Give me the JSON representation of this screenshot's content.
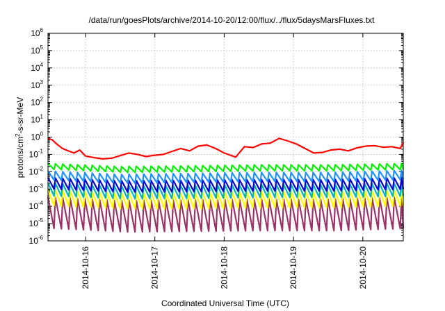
{
  "chart_data": {
    "type": "line",
    "title": "/data/run/goesPlots/archive/2014-10-20/12:00/flux/../flux/5daysMarsFluxes.txt",
    "xlabel": "Coordinated Universal Time (UTC)",
    "ylabel": {
      "prefix": "protons/cm",
      "exponent": "2",
      "suffix": "-s-sr-MeV"
    },
    "yscale": "log",
    "ylim": [
      1e-06,
      1000000.0
    ],
    "xlim": [
      "2014-10-15T11:00",
      "2014-10-20T14:00"
    ],
    "y_ticks": [
      {
        "value": 1e-06,
        "base": "10",
        "exp": "-6"
      },
      {
        "value": 1e-05,
        "base": "10",
        "exp": "-5"
      },
      {
        "value": 0.0001,
        "base": "10",
        "exp": "-4"
      },
      {
        "value": 0.001,
        "base": "10",
        "exp": "-3"
      },
      {
        "value": 0.01,
        "base": "10",
        "exp": "-2"
      },
      {
        "value": 0.1,
        "base": "10",
        "exp": "-1"
      },
      {
        "value": 1,
        "base": "10",
        "exp": "0"
      },
      {
        "value": 10.0,
        "base": "10",
        "exp": "1"
      },
      {
        "value": 100.0,
        "base": "10",
        "exp": "2"
      },
      {
        "value": 1000.0,
        "base": "10",
        "exp": "3"
      },
      {
        "value": 10000.0,
        "base": "10",
        "exp": "4"
      },
      {
        "value": 100000.0,
        "base": "10",
        "exp": "5"
      },
      {
        "value": 1000000.0,
        "base": "10",
        "exp": "6"
      }
    ],
    "x_ticks": [
      {
        "value": "2014-10-16T00:00",
        "label": "2014-10-16"
      },
      {
        "value": "2014-10-17T00:00",
        "label": "2014-10-17"
      },
      {
        "value": "2014-10-18T00:00",
        "label": "2014-10-18"
      },
      {
        "value": "2014-10-19T00:00",
        "label": "2014-10-19"
      },
      {
        "value": "2014-10-20T00:00",
        "label": "2014-10-20"
      }
    ],
    "grid": true,
    "legend": "none",
    "series": [
      {
        "color": "#ff0000",
        "points": [
          [
            "2014-10-15T11:00",
            0.85
          ],
          [
            "2014-10-15T12:30",
            0.7
          ],
          [
            "2014-10-15T14:00",
            0.4
          ],
          [
            "2014-10-15T16:00",
            0.22
          ],
          [
            "2014-10-15T18:00",
            0.16
          ],
          [
            "2014-10-15T20:00",
            0.12
          ],
          [
            "2014-10-15T22:00",
            0.18
          ],
          [
            "2014-10-16T00:00",
            0.08
          ],
          [
            "2014-10-16T03:00",
            0.065
          ],
          [
            "2014-10-16T06:00",
            0.055
          ],
          [
            "2014-10-16T09:00",
            0.06
          ],
          [
            "2014-10-16T12:00",
            0.085
          ],
          [
            "2014-10-16T15:00",
            0.12
          ],
          [
            "2014-10-16T18:00",
            0.1
          ],
          [
            "2014-10-16T21:00",
            0.075
          ],
          [
            "2014-10-17T00:00",
            0.09
          ],
          [
            "2014-10-17T03:00",
            0.1
          ],
          [
            "2014-10-17T06:00",
            0.15
          ],
          [
            "2014-10-17T09:00",
            0.22
          ],
          [
            "2014-10-17T12:00",
            0.16
          ],
          [
            "2014-10-17T15:00",
            0.3
          ],
          [
            "2014-10-17T18:00",
            0.35
          ],
          [
            "2014-10-17T21:00",
            0.22
          ],
          [
            "2014-10-18T00:00",
            0.12
          ],
          [
            "2014-10-18T04:00",
            0.07
          ],
          [
            "2014-10-18T07:00",
            0.28
          ],
          [
            "2014-10-18T10:00",
            0.25
          ],
          [
            "2014-10-18T13:00",
            0.4
          ],
          [
            "2014-10-18T16:00",
            0.45
          ],
          [
            "2014-10-18T19:00",
            0.85
          ],
          [
            "2014-10-18T22:00",
            0.6
          ],
          [
            "2014-10-19T01:00",
            0.4
          ],
          [
            "2014-10-19T04:00",
            0.22
          ],
          [
            "2014-10-19T07:00",
            0.12
          ],
          [
            "2014-10-19T10:00",
            0.13
          ],
          [
            "2014-10-19T13:00",
            0.18
          ],
          [
            "2014-10-19T16:00",
            0.2
          ],
          [
            "2014-10-19T19:00",
            0.16
          ],
          [
            "2014-10-19T22:00",
            0.24
          ],
          [
            "2014-10-20T01:00",
            0.3
          ],
          [
            "2014-10-20T04:00",
            0.32
          ],
          [
            "2014-10-20T07:00",
            0.26
          ],
          [
            "2014-10-20T10:00",
            0.28
          ],
          [
            "2014-10-20T13:00",
            0.22
          ],
          [
            "2014-10-20T14:00",
            0.5
          ]
        ]
      },
      {
        "color": "#00ee00",
        "cycle_hours": 2.55,
        "peak_trend": [
          [
            "2014-10-15T11:00",
            0.03
          ],
          [
            "2014-10-16T12:00",
            0.02
          ],
          [
            "2014-10-17T12:00",
            0.022
          ],
          [
            "2014-10-18T12:00",
            0.025
          ],
          [
            "2014-10-19T12:00",
            0.025
          ],
          [
            "2014-10-20T14:00",
            0.03
          ]
        ],
        "trough_ratio": 0.45
      },
      {
        "color": "#1e90ff",
        "cycle_hours": 2.55,
        "peak_trend": [
          [
            "2014-10-15T11:00",
            0.011
          ],
          [
            "2014-10-16T12:00",
            0.007
          ],
          [
            "2014-10-17T12:00",
            0.008
          ],
          [
            "2014-10-18T12:00",
            0.009
          ],
          [
            "2014-10-19T12:00",
            0.009
          ],
          [
            "2014-10-20T14:00",
            0.012
          ]
        ],
        "trough_ratio": 0.3
      },
      {
        "color": "#0000cc",
        "cycle_hours": 2.55,
        "peak_trend": [
          [
            "2014-10-15T11:00",
            0.0045
          ],
          [
            "2014-10-16T12:00",
            0.003
          ],
          [
            "2014-10-17T12:00",
            0.0032
          ],
          [
            "2014-10-18T12:00",
            0.0035
          ],
          [
            "2014-10-19T12:00",
            0.0035
          ],
          [
            "2014-10-20T14:00",
            0.0045
          ]
        ],
        "trough_ratio": 0.22
      },
      {
        "color": "#00b2b2",
        "cycle_hours": 2.55,
        "peak_trend": [
          [
            "2014-10-15T11:00",
            0.0022
          ],
          [
            "2014-10-16T12:00",
            0.0015
          ],
          [
            "2014-10-17T12:00",
            0.0016
          ],
          [
            "2014-10-18T12:00",
            0.0018
          ],
          [
            "2014-10-19T12:00",
            0.0018
          ],
          [
            "2014-10-20T14:00",
            0.0022
          ]
        ],
        "trough_ratio": 0.18
      },
      {
        "color": "#ffff00",
        "cycle_hours": 2.55,
        "peak_trend": [
          [
            "2014-10-15T11:00",
            0.0009
          ],
          [
            "2014-10-16T12:00",
            0.0006
          ],
          [
            "2014-10-17T12:00",
            0.0006
          ],
          [
            "2014-10-18T12:00",
            0.0007
          ],
          [
            "2014-10-19T12:00",
            0.0007
          ],
          [
            "2014-10-20T14:00",
            0.0009
          ]
        ],
        "trough_ratio": 0.12
      },
      {
        "color": "#993366",
        "cycle_hours": 2.55,
        "peak_trend": [
          [
            "2014-10-15T11:00",
            0.00035
          ],
          [
            "2014-10-16T12:00",
            0.00022
          ],
          [
            "2014-10-17T12:00",
            0.00024
          ],
          [
            "2014-10-18T12:00",
            0.00026
          ],
          [
            "2014-10-19T12:00",
            0.00026
          ],
          [
            "2014-10-20T14:00",
            0.00035
          ]
        ],
        "trough_ratio": 0.015
      }
    ]
  }
}
